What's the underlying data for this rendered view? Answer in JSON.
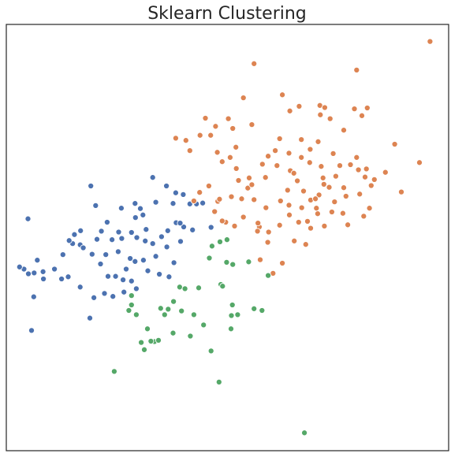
{
  "chart_data": {
    "type": "scatter",
    "title": "Sklearn Clustering",
    "xlabel": "",
    "ylabel": "",
    "xlim": [
      0,
      100
    ],
    "ylim": [
      0,
      100
    ],
    "grid": false,
    "legend": "none",
    "series": [
      {
        "color": "#4c72b0",
        "points": [
          [
            19.1,
            62.1
          ],
          [
            33.1,
            64.1
          ],
          [
            36.2,
            62.1
          ],
          [
            38.3,
            60.5
          ],
          [
            40.0,
            60.1
          ],
          [
            37.7,
            58.0
          ],
          [
            33.8,
            58.3
          ],
          [
            29.1,
            58.0
          ],
          [
            30.3,
            56.8
          ],
          [
            30.9,
            55.3
          ],
          [
            31.6,
            51.9
          ],
          [
            20.2,
            57.5
          ],
          [
            4.9,
            54.4
          ],
          [
            7.0,
            44.7
          ],
          [
            8.3,
            42.0
          ],
          [
            12.8,
            46.0
          ],
          [
            15.0,
            48.6
          ],
          [
            16.7,
            48.3
          ],
          [
            17.4,
            47.6
          ],
          [
            19.4,
            46.1
          ],
          [
            20.5,
            49.6
          ],
          [
            23.9,
            49.5
          ],
          [
            25.4,
            51.3
          ],
          [
            28.3,
            51.2
          ],
          [
            29.5,
            50.0
          ],
          [
            31.4,
            49.2
          ],
          [
            33.1,
            48.6
          ],
          [
            35.1,
            50.2
          ],
          [
            36.5,
            51.6
          ],
          [
            38.4,
            53.5
          ],
          [
            40.1,
            52.5
          ],
          [
            42.1,
            51.8
          ],
          [
            39.4,
            49.1
          ],
          [
            36.3,
            47.8
          ],
          [
            33.8,
            45.6
          ],
          [
            31.0,
            44.7
          ],
          [
            28.0,
            45.1
          ],
          [
            25.3,
            46.7
          ],
          [
            22.5,
            46.0
          ],
          [
            21.3,
            43.8
          ],
          [
            23.0,
            40.9
          ],
          [
            24.7,
            40.9
          ],
          [
            26.4,
            40.1
          ],
          [
            28.3,
            39.8
          ],
          [
            29.4,
            38.0
          ],
          [
            26.6,
            37.2
          ],
          [
            24.1,
            36.2
          ],
          [
            22.2,
            36.9
          ],
          [
            19.8,
            35.9
          ],
          [
            16.7,
            38.4
          ],
          [
            14.0,
            40.8
          ],
          [
            12.5,
            40.3
          ],
          [
            10.9,
            42.6
          ],
          [
            8.4,
            40.3
          ],
          [
            6.3,
            41.7
          ],
          [
            4.0,
            42.6
          ],
          [
            3.0,
            43.1
          ],
          [
            5.0,
            41.5
          ],
          [
            6.2,
            36.1
          ],
          [
            18.9,
            31.1
          ],
          [
            5.7,
            28.2
          ],
          [
            29.1,
            44.4
          ],
          [
            27.1,
            42.6
          ],
          [
            32.0,
            42.2
          ],
          [
            37.9,
            44.1
          ],
          [
            34.6,
            41.4
          ],
          [
            36.8,
            40.8
          ],
          [
            26.1,
            49.8
          ],
          [
            21.5,
            51.5
          ],
          [
            22.8,
            53.6
          ],
          [
            16.8,
            51.6
          ],
          [
            15.4,
            50.7
          ],
          [
            14.2,
            49.3
          ],
          [
            29.2,
            54.7
          ],
          [
            26.0,
            56.9
          ],
          [
            41.5,
            57.9
          ],
          [
            46.3,
            52.4
          ],
          [
            39.3,
            53.4
          ],
          [
            44.4,
            58.1
          ],
          [
            43.0,
            57.9
          ]
        ]
      },
      {
        "color": "#dd8452",
        "points": [
          [
            95.8,
            96.0
          ],
          [
            56.0,
            90.8
          ],
          [
            79.2,
            89.3
          ],
          [
            53.6,
            82.8
          ],
          [
            62.4,
            83.5
          ],
          [
            70.9,
            81.0
          ],
          [
            66.2,
            80.8
          ],
          [
            72.0,
            80.5
          ],
          [
            71.0,
            78.8
          ],
          [
            78.7,
            80.2
          ],
          [
            81.6,
            80.4
          ],
          [
            64.1,
            79.7
          ],
          [
            73.2,
            77.9
          ],
          [
            80.4,
            78.6
          ],
          [
            45.0,
            78.0
          ],
          [
            47.3,
            76.1
          ],
          [
            50.2,
            77.9
          ],
          [
            51.2,
            75.6
          ],
          [
            55.5,
            76.5
          ],
          [
            43.8,
            74.0
          ],
          [
            38.3,
            73.3
          ],
          [
            40.6,
            72.8
          ],
          [
            41.5,
            70.4
          ],
          [
            46.2,
            74.0
          ],
          [
            47.7,
            70.0
          ],
          [
            51.9,
            71.2
          ],
          [
            50.6,
            68.8
          ],
          [
            48.8,
            67.8
          ],
          [
            52.0,
            66.2
          ],
          [
            57.9,
            67.2
          ],
          [
            58.6,
            64.1
          ],
          [
            61.8,
            73.2
          ],
          [
            60.8,
            70.4
          ],
          [
            63.9,
            69.8
          ],
          [
            66.7,
            68.8
          ],
          [
            68.6,
            67.6
          ],
          [
            71.2,
            66.7
          ],
          [
            74.5,
            64.4
          ],
          [
            75.4,
            66.9
          ],
          [
            77.8,
            67.1
          ],
          [
            79.6,
            65.9
          ],
          [
            81.1,
            64.2
          ],
          [
            83.2,
            63.6
          ],
          [
            82.5,
            62.2
          ],
          [
            79.9,
            60.2
          ],
          [
            76.3,
            61.7
          ],
          [
            73.0,
            61.8
          ],
          [
            70.7,
            60.0
          ],
          [
            68.8,
            58.8
          ],
          [
            66.8,
            57.0
          ],
          [
            63.9,
            57.6
          ],
          [
            62.0,
            58.6
          ],
          [
            58.7,
            57.0
          ],
          [
            56.0,
            58.9
          ],
          [
            53.2,
            59.1
          ],
          [
            50.9,
            59.6
          ],
          [
            47.8,
            58.5
          ],
          [
            43.7,
            60.6
          ],
          [
            42.4,
            58.6
          ],
          [
            47.1,
            56.1
          ],
          [
            49.6,
            53.6
          ],
          [
            51.6,
            52.7
          ],
          [
            53.6,
            54.8
          ],
          [
            57.2,
            52.5
          ],
          [
            59.3,
            51.3
          ],
          [
            61.8,
            52.9
          ],
          [
            64.0,
            55.3
          ],
          [
            66.1,
            53.6
          ],
          [
            68.1,
            53.8
          ],
          [
            70.4,
            55.6
          ],
          [
            71.9,
            52.7
          ],
          [
            73.6,
            56.0
          ],
          [
            76.1,
            55.7
          ],
          [
            77.2,
            53.0
          ],
          [
            80.8,
            55.0
          ],
          [
            82.1,
            56.9
          ],
          [
            85.7,
            65.3
          ],
          [
            89.3,
            60.7
          ],
          [
            93.4,
            67.6
          ],
          [
            87.8,
            71.9
          ],
          [
            65.1,
            49.2
          ],
          [
            59.1,
            48.9
          ],
          [
            67.7,
            48.4
          ],
          [
            56.9,
            53.4
          ],
          [
            68.8,
            52.2
          ],
          [
            57.4,
            44.8
          ],
          [
            62.4,
            44.0
          ],
          [
            60.3,
            41.6
          ],
          [
            59.2,
            69.1
          ],
          [
            61.2,
            66.9
          ],
          [
            64.2,
            65.7
          ],
          [
            68.7,
            70.7
          ],
          [
            73.9,
            69.7
          ],
          [
            76.3,
            75.2
          ],
          [
            79.2,
            68.8
          ],
          [
            81.4,
            66.1
          ],
          [
            45.8,
            62.1
          ],
          [
            48.2,
            59.0
          ],
          [
            66.7,
            73.0
          ],
          [
            70.5,
            72.5
          ],
          [
            65.0,
            65.1
          ],
          [
            65.8,
            63.3
          ],
          [
            71.6,
            64.0
          ],
          [
            54.6,
            61.6
          ],
          [
            55.5,
            62.4
          ],
          [
            71.8,
            62.5
          ],
          [
            70.1,
            56.9
          ],
          [
            69.9,
            59.1
          ],
          [
            74.2,
            58.4
          ],
          [
            76.8,
            59.7
          ],
          [
            48.8,
            53.9
          ],
          [
            52.5,
            63.4
          ],
          [
            54.9,
            64.0
          ],
          [
            67.2,
            60.9
          ],
          [
            63.6,
            61.1
          ],
          [
            56.8,
            51.5
          ]
        ]
      },
      {
        "color": "#55a868",
        "points": [
          [
            46.5,
            48.0
          ],
          [
            48.3,
            49.0
          ],
          [
            49.9,
            49.5
          ],
          [
            45.9,
            45.2
          ],
          [
            49.8,
            44.2
          ],
          [
            54.8,
            44.3
          ],
          [
            51.2,
            43.7
          ],
          [
            59.2,
            41.1
          ],
          [
            48.5,
            39.0
          ],
          [
            39.2,
            38.4
          ],
          [
            40.4,
            38.0
          ],
          [
            43.5,
            38.2
          ],
          [
            37.8,
            35.0
          ],
          [
            48.9,
            38.6
          ],
          [
            51.1,
            34.2
          ],
          [
            52.3,
            31.9
          ],
          [
            56.0,
            33.3
          ],
          [
            57.8,
            32.9
          ],
          [
            50.9,
            31.7
          ],
          [
            50.8,
            28.6
          ],
          [
            44.6,
            29.5
          ],
          [
            42.4,
            31.9
          ],
          [
            39.6,
            32.8
          ],
          [
            41.6,
            26.9
          ],
          [
            35.8,
            31.9
          ],
          [
            36.6,
            33.2
          ],
          [
            34.9,
            33.4
          ],
          [
            37.7,
            27.6
          ],
          [
            31.9,
            28.6
          ],
          [
            29.4,
            31.9
          ],
          [
            28.3,
            34.2
          ],
          [
            28.3,
            36.4
          ],
          [
            33.5,
            25.6
          ],
          [
            34.4,
            25.9
          ],
          [
            32.7,
            25.7
          ],
          [
            30.5,
            25.4
          ],
          [
            31.2,
            23.7
          ],
          [
            24.4,
            18.6
          ],
          [
            27.7,
            32.9
          ],
          [
            46.3,
            23.4
          ],
          [
            48.1,
            16.1
          ],
          [
            67.4,
            4.2
          ]
        ]
      }
    ]
  }
}
